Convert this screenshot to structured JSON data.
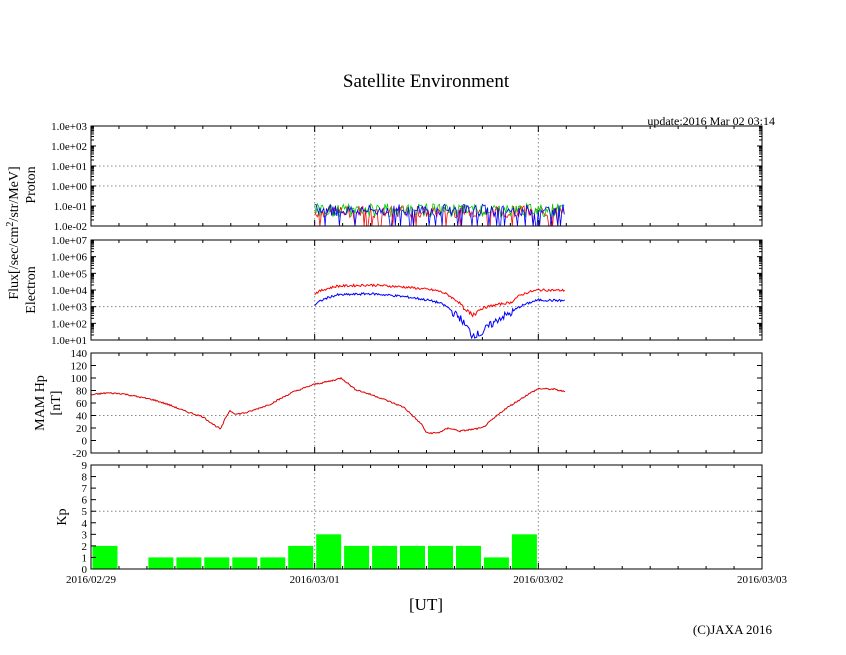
{
  "chart_data": {
    "type": "composite",
    "title": "Satellite Environment",
    "update_label": "update:2016 Mar 02 03:14",
    "copyright": "(C)JAXA 2016",
    "xlabel": "[UT]",
    "x_ticks": [
      "2016/02/29",
      "2016/03/01",
      "2016/03/02",
      "2016/03/03"
    ],
    "shared_ylabel": "Flux[/sec/cm2/str/MeV]",
    "panels": [
      {
        "name": "Proton",
        "ylabel": "Proton",
        "scale": "log",
        "ylim": [
          0.01,
          1000
        ],
        "y_ticks": [
          "1.0e-02",
          "1.0e-01",
          "1.0e+00",
          "1.0e+01",
          "1.0e+02",
          "1.0e+03"
        ],
        "series": [
          {
            "color": "#ff0000",
            "x_range": [
              1.0,
              2.12
            ],
            "typical": 0.05,
            "min": 0.01,
            "max": 0.1
          },
          {
            "color": "#00cc00",
            "x_range": [
              1.0,
              2.12
            ],
            "typical": 0.07,
            "min": 0.03,
            "max": 0.11
          },
          {
            "color": "#0000ff",
            "x_range": [
              1.0,
              2.12
            ],
            "typical": 0.06,
            "min": 0.01,
            "max": 0.12
          }
        ]
      },
      {
        "name": "Electron",
        "ylabel": "Electron",
        "scale": "log",
        "ylim": [
          10,
          10000000
        ],
        "y_ticks": [
          "1.0e+01",
          "1.0e+02",
          "1.0e+03",
          "1.0e+04",
          "1.0e+05",
          "1.0e+06",
          "1.0e+07"
        ],
        "series": [
          {
            "color": "#ff0000",
            "x": [
              1.0,
              1.1,
              1.25,
              1.4,
              1.55,
              1.62,
              1.67,
              1.7,
              1.75,
              1.8,
              1.88,
              1.95,
              2.0,
              2.12
            ],
            "y": [
              6000,
              17000,
              20000,
              15000,
              9000,
              3000,
              600,
              300,
              800,
              1200,
              1800,
              7000,
              10000,
              9500
            ]
          },
          {
            "color": "#0000ff",
            "x": [
              1.0,
              1.1,
              1.25,
              1.4,
              1.55,
              1.62,
              1.67,
              1.7,
              1.75,
              1.8,
              1.88,
              1.95,
              2.0,
              2.12
            ],
            "y": [
              1200,
              5000,
              6000,
              4000,
              1800,
              400,
              80,
              20,
              25,
              100,
              400,
              1500,
              2500,
              2300
            ]
          }
        ]
      },
      {
        "name": "MAM Hp",
        "ylabel": "MAM Hp [nT]",
        "scale": "linear",
        "ylim": [
          -20,
          140
        ],
        "y_ticks": [
          "-20",
          "0",
          "20",
          "40",
          "60",
          "80",
          "100",
          "120",
          "140"
        ],
        "series": [
          {
            "color": "#dd0000",
            "x": [
              0.0,
              0.07,
              0.14,
              0.21,
              0.28,
              0.35,
              0.42,
              0.5,
              0.55,
              0.58,
              0.6,
              0.62,
              0.65,
              0.7,
              0.8,
              0.9,
              1.0,
              1.07,
              1.12,
              1.18,
              1.28,
              1.4,
              1.48,
              1.5,
              1.55,
              1.6,
              1.65,
              1.75,
              1.85,
              1.95,
              2.0,
              2.07,
              2.12
            ],
            "y": [
              73,
              76,
              75,
              70,
              65,
              57,
              47,
              38,
              25,
              18,
              35,
              48,
              42,
              45,
              58,
              77,
              90,
              95,
              100,
              82,
              70,
              53,
              25,
              12,
              12,
              20,
              15,
              20,
              50,
              73,
              83,
              82,
              78
            ]
          }
        ]
      },
      {
        "name": "Kp",
        "ylabel": "Kp",
        "scale": "linear",
        "ylim": [
          0,
          9
        ],
        "y_ticks": [
          "0",
          "1",
          "2",
          "3",
          "4",
          "5",
          "6",
          "7",
          "8",
          "9"
        ],
        "bar_color": "#00ff00",
        "bin_hours": 3,
        "values": [
          2,
          0,
          1,
          1,
          1,
          1,
          1,
          2,
          3,
          2,
          2,
          2,
          2,
          2,
          1,
          3
        ]
      }
    ],
    "grid": {
      "x_dotted_at": [
        1,
        2
      ],
      "proton_dotted_y": [
        1,
        10
      ],
      "electron_dotted_y": [
        1000
      ],
      "hp_dotted_y": [
        40
      ],
      "kp_dotted_y": [
        5
      ]
    },
    "x_domain": [
      0,
      3
    ]
  }
}
